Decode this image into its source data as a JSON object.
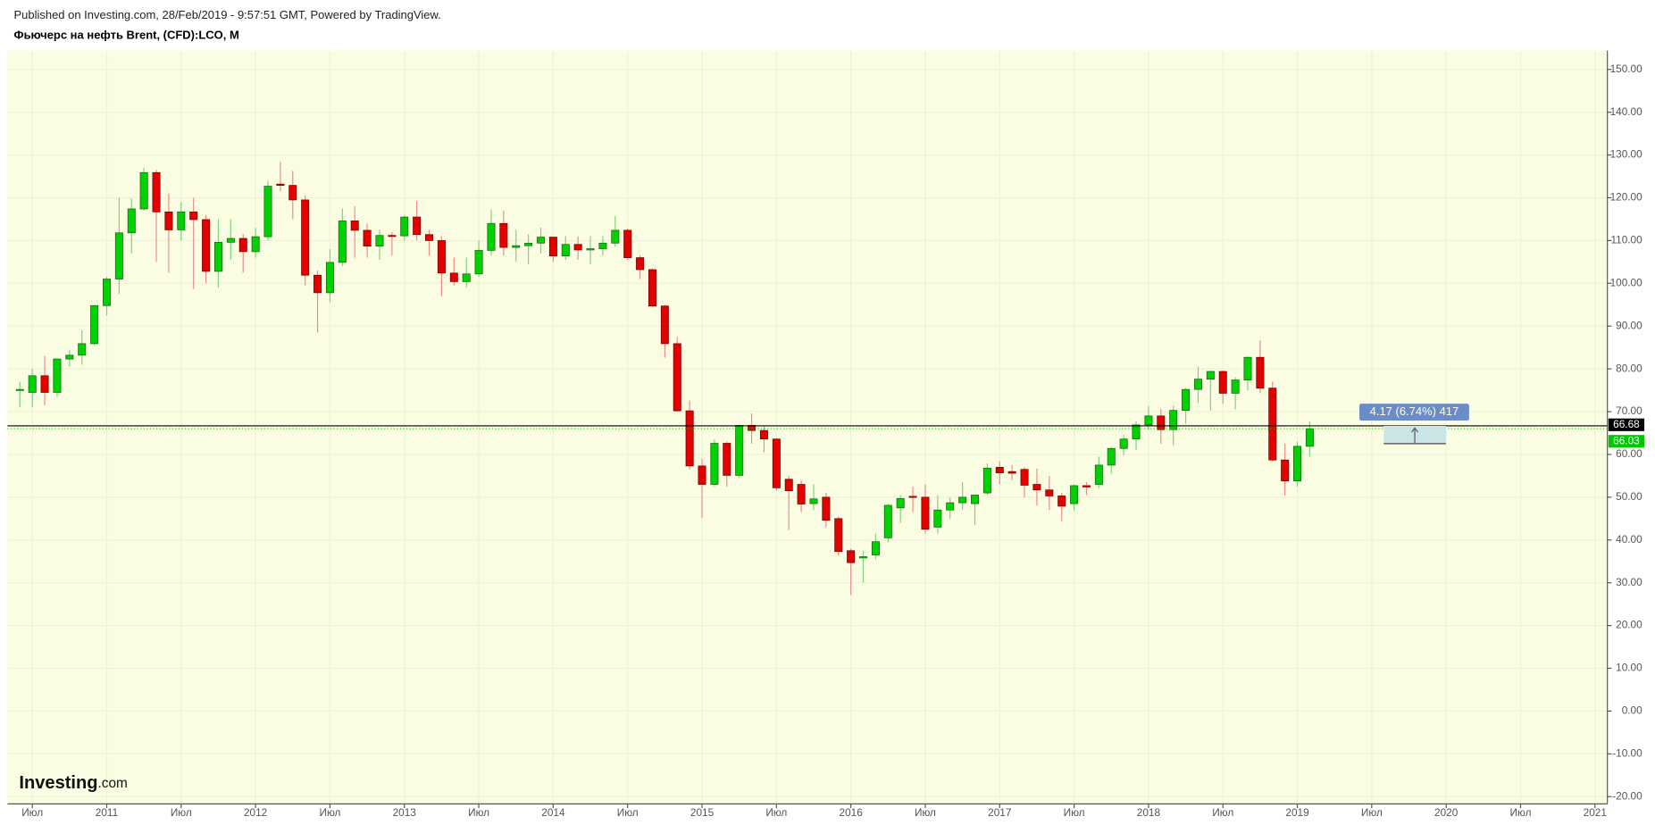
{
  "chart_data": {
    "type": "candlestick",
    "source": "Published on Investing.com, 28/Feb/2019 - 9:57:51 GMT, Powered by TradingView.",
    "title": "Фьючерс на нефть Brent, (CFD):LCO, M",
    "logo": {
      "brand": "Investing",
      "suffix": ".com"
    },
    "up_color": "#00d100",
    "down_color": "#e50000",
    "background": "#fafde1",
    "grid": true,
    "x": [
      "2010-06",
      "2010-07",
      "2010-08",
      "2010-09",
      "2010-10",
      "2010-11",
      "2010-12",
      "2011-01",
      "2011-02",
      "2011-03",
      "2011-04",
      "2011-05",
      "2011-06",
      "2011-07",
      "2011-08",
      "2011-09",
      "2011-10",
      "2011-11",
      "2011-12",
      "2012-01",
      "2012-02",
      "2012-03",
      "2012-04",
      "2012-05",
      "2012-06",
      "2012-07",
      "2012-08",
      "2012-09",
      "2012-10",
      "2012-11",
      "2012-12",
      "2013-01",
      "2013-02",
      "2013-03",
      "2013-04",
      "2013-05",
      "2013-06",
      "2013-07",
      "2013-08",
      "2013-09",
      "2013-10",
      "2013-11",
      "2013-12",
      "2014-01",
      "2014-02",
      "2014-03",
      "2014-04",
      "2014-05",
      "2014-06",
      "2014-07",
      "2014-08",
      "2014-09",
      "2014-10",
      "2014-11",
      "2014-12",
      "2015-01",
      "2015-02",
      "2015-03",
      "2015-04",
      "2015-05",
      "2015-06",
      "2015-07",
      "2015-08",
      "2015-09",
      "2015-10",
      "2015-11",
      "2015-12",
      "2016-01",
      "2016-02",
      "2016-03",
      "2016-04",
      "2016-05",
      "2016-06",
      "2016-07",
      "2016-08",
      "2016-09",
      "2016-10",
      "2016-11",
      "2016-12",
      "2017-01",
      "2017-02",
      "2017-03",
      "2017-04",
      "2017-05",
      "2017-06",
      "2017-07",
      "2017-08",
      "2017-09",
      "2017-10",
      "2017-11",
      "2017-12",
      "2018-01",
      "2018-02",
      "2018-03",
      "2018-04",
      "2018-05",
      "2018-06",
      "2018-07",
      "2018-08",
      "2018-09",
      "2018-10",
      "2018-11",
      "2018-12",
      "2019-01",
      "2019-02"
    ],
    "open": [
      75,
      74.5,
      78.4,
      74.5,
      82.3,
      83.2,
      85.9,
      94.8,
      101,
      111.8,
      117.4,
      125.9,
      116.7,
      112.5,
      116.7,
      114.9,
      102.8,
      109.6,
      110.5,
      107.4,
      110.9,
      123.2,
      122.9,
      119.5,
      101.9,
      97.8,
      104.9,
      114.6,
      112.4,
      108.7,
      111.2,
      111.1,
      115.5,
      111.4,
      110,
      102.4,
      100.4,
      102.2,
      107.7,
      114,
      108.4,
      108.8,
      109.4,
      110.8,
      106.4,
      109.1,
      107.8,
      108.1,
      109.4,
      112.4,
      106,
      103.2,
      94.7,
      85.9,
      70.2,
      57.3,
      53,
      62.6,
      55.1,
      66.8,
      65.6,
      63.6,
      54.2,
      53,
      48.5,
      50,
      45,
      37.5,
      35.8,
      36.5,
      40.5,
      47.5,
      50.2,
      50,
      43,
      47,
      48.7,
      48.5,
      51,
      57,
      56,
      56.5,
      53,
      51.7,
      50.3,
      48.5,
      52.7,
      53,
      57.5,
      61.4,
      63.6,
      66.9,
      69,
      65.8,
      70.3,
      75.2,
      77.6,
      79.4,
      74.3,
      77.4,
      82.7,
      75.5,
      58.7,
      53.8,
      61.9
    ],
    "high": [
      77,
      80,
      83,
      82.5,
      84.5,
      89,
      95,
      101.5,
      120,
      119.8,
      127,
      126.5,
      121,
      119,
      120,
      116,
      115,
      115,
      111.5,
      113,
      124,
      128.4,
      126.3,
      120.6,
      103,
      108,
      117.5,
      118,
      114,
      112.5,
      112,
      116,
      119.2,
      112.5,
      111,
      106,
      106,
      110,
      117.3,
      117,
      112.5,
      111.5,
      113,
      110.8,
      111,
      111,
      111,
      111,
      115.7,
      112.8,
      106.5,
      103.5,
      95,
      87.5,
      72.6,
      59,
      63.5,
      63,
      67,
      69.6,
      66.5,
      63.8,
      55,
      54,
      53,
      51,
      45.5,
      38,
      37.5,
      41.5,
      48.5,
      50.5,
      52.5,
      53,
      50.5,
      49.9,
      53.5,
      50.5,
      57.9,
      58.4,
      57.5,
      57,
      56.7,
      55,
      51,
      53,
      53.5,
      59.5,
      61.7,
      64.6,
      67.7,
      71.3,
      70.6,
      71.4,
      75.5,
      80.5,
      79.6,
      79.6,
      78,
      82.9,
      86.7,
      77,
      62.5,
      63,
      67.7
    ],
    "low": [
      71,
      71,
      71.5,
      73.5,
      80.5,
      81,
      85.5,
      92.5,
      97.5,
      107,
      117,
      105,
      102.5,
      110,
      98.7,
      100,
      99,
      105.5,
      102.5,
      106,
      110,
      121.5,
      115,
      99.5,
      88.5,
      95.5,
      104,
      106,
      106,
      105.5,
      106.5,
      110,
      110,
      106.5,
      97,
      99.5,
      99,
      101.5,
      106.5,
      106.5,
      105,
      104.5,
      107,
      105,
      105.5,
      105.5,
      104.5,
      106.5,
      108.5,
      105.5,
      101,
      94.5,
      82.6,
      70,
      56.5,
      45.2,
      52.5,
      52.5,
      54.5,
      62.5,
      60.5,
      51.5,
      42.3,
      46.5,
      47,
      43,
      36.3,
      27.1,
      30,
      35.5,
      39.5,
      44,
      46.5,
      41.5,
      41.5,
      45,
      47,
      43.5,
      50.5,
      53,
      54,
      50,
      48,
      47,
      44.4,
      46.8,
      50.5,
      52.2,
      55.5,
      59.8,
      61,
      65.8,
      62.5,
      62.2,
      67.2,
      72,
      70.3,
      71.8,
      70.5,
      75,
      74.3,
      58.4,
      50.4,
      52.5,
      59.5
    ],
    "close": [
      75.2,
      78.4,
      74.5,
      82.3,
      83.2,
      85.9,
      94.8,
      101,
      111.8,
      117.4,
      125.9,
      116.7,
      112.5,
      116.7,
      114.9,
      102.8,
      109.6,
      110.5,
      107.4,
      110.9,
      122.7,
      122.9,
      119.5,
      101.9,
      97.8,
      104.9,
      114.6,
      112.4,
      108.7,
      111.2,
      111.1,
      115.5,
      111.4,
      110,
      102.4,
      100.4,
      102.2,
      107.7,
      114,
      108.4,
      108.8,
      109.4,
      110.8,
      106.4,
      109.1,
      107.8,
      108.1,
      109.4,
      112.4,
      106,
      103.2,
      94.7,
      85.9,
      70.2,
      57.3,
      53,
      62.6,
      55.1,
      66.8,
      65.6,
      63.6,
      52.2,
      51.5,
      48.4,
      49.6,
      44.6,
      37.3,
      34.7,
      36.1,
      39.6,
      48.1,
      49.7,
      50,
      42.5,
      47,
      48.7,
      50,
      50.5,
      56.8,
      55.7,
      55.6,
      52.8,
      51.7,
      50.3,
      47.9,
      52.7,
      52.4,
      57.5,
      61.4,
      63.6,
      66.9,
      69,
      65.8,
      70.3,
      75.2,
      77.6,
      79.4,
      74.3,
      77.4,
      82.7,
      75.5,
      58.7,
      53.8,
      61.9,
      66.03
    ],
    "xlim": [
      "2010-05",
      "2021-02"
    ],
    "xticks": [
      {
        "value": "2010-07",
        "label": "Июл"
      },
      {
        "value": "2011-01",
        "label": "2011"
      },
      {
        "value": "2011-07",
        "label": "Июл"
      },
      {
        "value": "2012-01",
        "label": "2012"
      },
      {
        "value": "2012-07",
        "label": "Июл"
      },
      {
        "value": "2013-01",
        "label": "2013"
      },
      {
        "value": "2013-07",
        "label": "Июл"
      },
      {
        "value": "2014-01",
        "label": "2014"
      },
      {
        "value": "2014-07",
        "label": "Июл"
      },
      {
        "value": "2015-01",
        "label": "2015"
      },
      {
        "value": "2015-07",
        "label": "Июл"
      },
      {
        "value": "2016-01",
        "label": "2016"
      },
      {
        "value": "2016-07",
        "label": "Июл"
      },
      {
        "value": "2017-01",
        "label": "2017"
      },
      {
        "value": "2017-07",
        "label": "Июл"
      },
      {
        "value": "2018-01",
        "label": "2018"
      },
      {
        "value": "2018-07",
        "label": "Июл"
      },
      {
        "value": "2019-01",
        "label": "2019"
      },
      {
        "value": "2019-07",
        "label": "Июл"
      },
      {
        "value": "2020-01",
        "label": "2020"
      },
      {
        "value": "2020-07",
        "label": "Июл"
      },
      {
        "value": "2021-01",
        "label": "2021"
      }
    ],
    "ylim": [
      -21.7,
      154.4
    ],
    "yticks": [
      {
        "value": -20,
        "label": "-20.00"
      },
      {
        "value": -10,
        "label": "-10.00"
      },
      {
        "value": 0,
        "label": "0.00"
      },
      {
        "value": 10,
        "label": "10.00"
      },
      {
        "value": 20,
        "label": "20.00"
      },
      {
        "value": 30,
        "label": "30.00"
      },
      {
        "value": 40,
        "label": "40.00"
      },
      {
        "value": 50,
        "label": "50.00"
      },
      {
        "value": 60,
        "label": "60.00"
      },
      {
        "value": 70,
        "label": "70.00"
      },
      {
        "value": 80,
        "label": "80.00"
      },
      {
        "value": 90,
        "label": "90.00"
      },
      {
        "value": 100,
        "label": "100.00"
      },
      {
        "value": 110,
        "label": "110.00"
      },
      {
        "value": 120,
        "label": "120.00"
      },
      {
        "value": 130,
        "label": "130.00"
      },
      {
        "value": 140,
        "label": "140.00"
      },
      {
        "value": 150,
        "label": "150.00"
      }
    ],
    "price_lines": [
      {
        "value": 66.68,
        "color": "#000000"
      },
      {
        "value": 66.03,
        "color": "#00c800"
      }
    ],
    "measure": {
      "label": "4.17 (6.74%) 417",
      "low": 62.51,
      "high": 66.68
    }
  }
}
